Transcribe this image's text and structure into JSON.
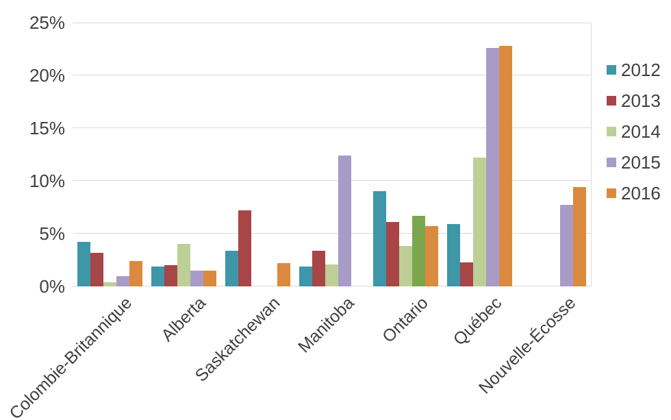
{
  "chart_data": {
    "type": "bar",
    "title": "",
    "xlabel": "",
    "ylabel": "",
    "categories": [
      "Colombie-Britannique",
      "Alberta",
      "Saskatchewan",
      "Manitoba",
      "Ontario",
      "Québec",
      "Nouvelle-Écosse"
    ],
    "series": [
      {
        "name": "2012",
        "color": "#3E96A9",
        "values": [
          4.2,
          1.9,
          3.4,
          1.9,
          9.0,
          5.9,
          0
        ]
      },
      {
        "name": "2013",
        "color": "#A84546",
        "values": [
          3.2,
          2.0,
          7.2,
          3.4,
          6.1,
          2.3,
          0
        ]
      },
      {
        "name": "2014",
        "color": "#BDCF97",
        "values": [
          0.4,
          4.0,
          0,
          2.1,
          3.8,
          12.2,
          0
        ]
      },
      {
        "name": "2015",
        "color": "#A89CC7",
        "values": [
          1.0,
          1.5,
          0,
          12.4,
          6.7,
          22.6,
          7.7
        ]
      },
      {
        "name": "2016",
        "color": "#DA8A3E",
        "values": [
          2.4,
          1.5,
          2.2,
          0,
          5.7,
          22.8,
          9.4
        ]
      }
    ],
    "color_overrides": [
      {
        "category": "Ontario",
        "series": "2015",
        "color": "#7CA64E"
      }
    ],
    "y_axis": {
      "min": 0,
      "max": 25,
      "step": 5,
      "tick_labels": [
        "0%",
        "5%",
        "10%",
        "15%",
        "20%",
        "25%"
      ],
      "unit": "%"
    },
    "grid": true,
    "legend_position": "right",
    "legend_entries": [
      "2012",
      "2013",
      "2014",
      "2015",
      "2016"
    ]
  },
  "colors": {
    "grid": "#d9d9d9",
    "text": "#404040",
    "background": "#ffffff"
  }
}
